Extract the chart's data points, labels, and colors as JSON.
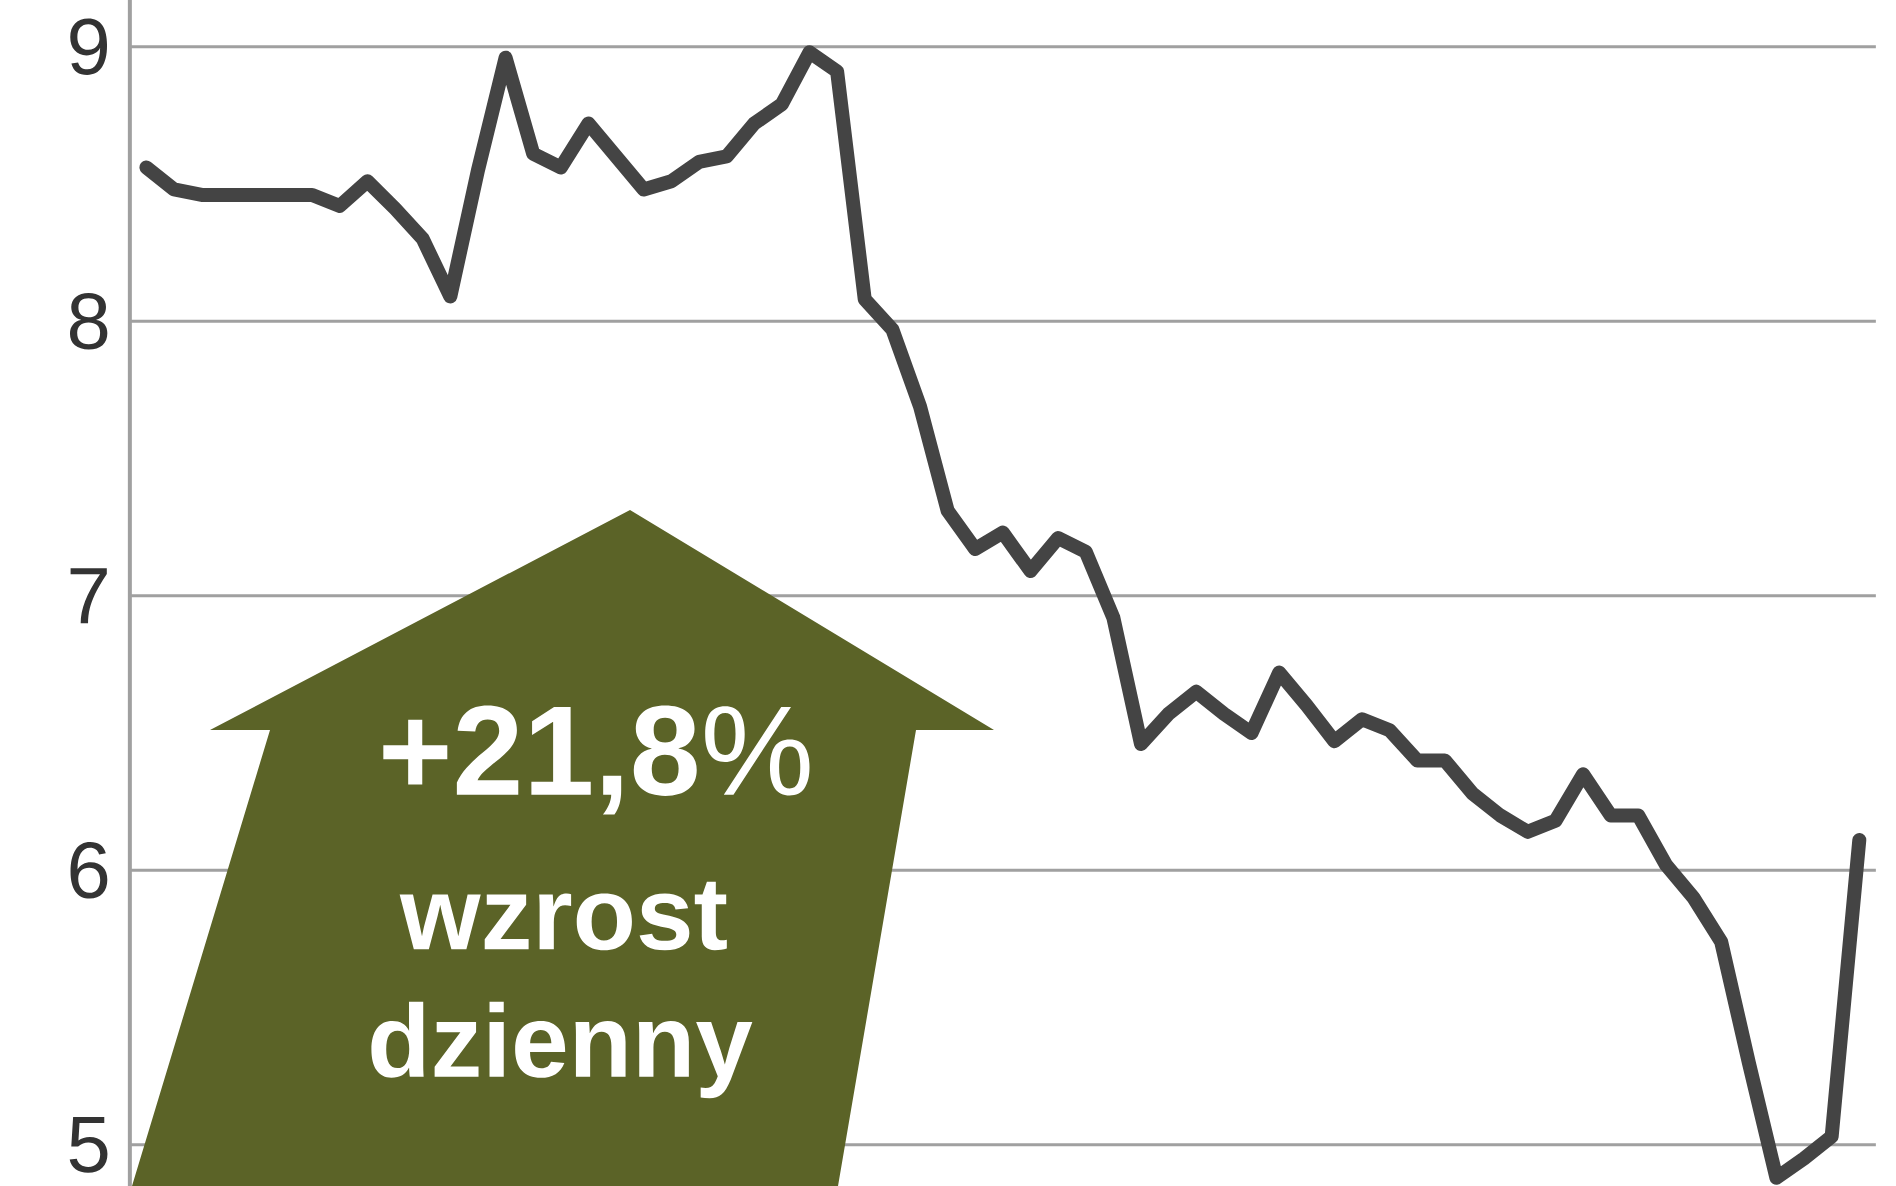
{
  "chart_data": {
    "type": "line",
    "categories": [
      null,
      null,
      null,
      null,
      null,
      null,
      null,
      null,
      null,
      null,
      null,
      null,
      null,
      null,
      null,
      null,
      null,
      null,
      null,
      null,
      null,
      null,
      null,
      null,
      null,
      null,
      null,
      null,
      null,
      null,
      null,
      null,
      null,
      null,
      null,
      null,
      null,
      null,
      null,
      null,
      null,
      null,
      null,
      null,
      null,
      null,
      null,
      null,
      null,
      null,
      null,
      null,
      null,
      null,
      null,
      null,
      null,
      null,
      null,
      null,
      null,
      null,
      null
    ],
    "series": [
      {
        "color": "#444444",
        "values": [
          8.56,
          8.48,
          8.46,
          8.46,
          8.46,
          8.46,
          8.46,
          8.42,
          8.51,
          8.41,
          8.3,
          8.09,
          8.55,
          8.96,
          8.61,
          8.56,
          8.72,
          8.6,
          8.48,
          8.51,
          8.58,
          8.6,
          8.72,
          8.79,
          8.98,
          8.91,
          8.08,
          7.97,
          7.69,
          7.31,
          7.17,
          7.23,
          7.09,
          7.21,
          7.16,
          6.92,
          6.46,
          6.57,
          6.65,
          6.57,
          6.5,
          6.72,
          6.6,
          6.47,
          6.55,
          6.51,
          6.4,
          6.4,
          6.28,
          6.2,
          6.14,
          6.18,
          6.35,
          6.2,
          6.2,
          6.02,
          5.9,
          5.74,
          5.3,
          4.88,
          4.95,
          5.03,
          6.11
        ]
      }
    ],
    "ylim": [
      4.85,
      9.17
    ],
    "yticks": [
      5,
      6,
      7,
      8,
      9
    ],
    "grid": "y",
    "tick_labels": "y",
    "annotations": [
      "**+21,8**%",
      "wzrost",
      "dzienny"
    ]
  }
}
